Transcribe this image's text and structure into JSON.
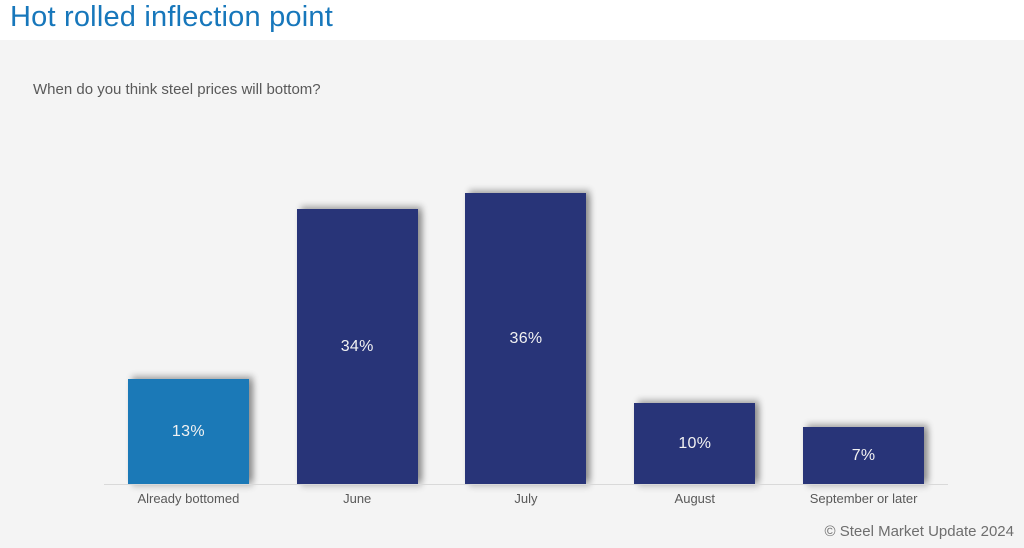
{
  "page": {
    "title": "Hot rolled inflection point",
    "subtitle": "When do you think steel prices will bottom?",
    "footer": "© Steel Market Update 2024"
  },
  "colors": {
    "title_blue": "#1777bb",
    "bar_highlight": "#1b79b7",
    "bar_default": "#283478",
    "background": "#f4f4f4",
    "top_band": "#ffffff",
    "axis_line": "#d9d9d9",
    "label_gray": "#595959",
    "footer_gray": "#6e6e6e",
    "value_label": "#f2f2f2"
  },
  "chart_data": {
    "type": "bar",
    "title": "Hot rolled inflection point",
    "subtitle": "When do you think steel prices will bottom?",
    "categories": [
      "Already bottomed",
      "June",
      "July",
      "August",
      "September or later"
    ],
    "values": [
      13,
      34,
      36,
      10,
      7
    ],
    "value_labels": [
      "13%",
      "34%",
      "36%",
      "10%",
      "7%"
    ],
    "bar_colors": [
      "#1b79b7",
      "#283478",
      "#283478",
      "#283478",
      "#283478"
    ],
    "xlabel": "",
    "ylabel": "",
    "ylim": [
      0,
      36
    ],
    "grid": false,
    "legend": "none",
    "value_label_position": "inside-center",
    "footer": "© Steel Market Update 2024"
  }
}
